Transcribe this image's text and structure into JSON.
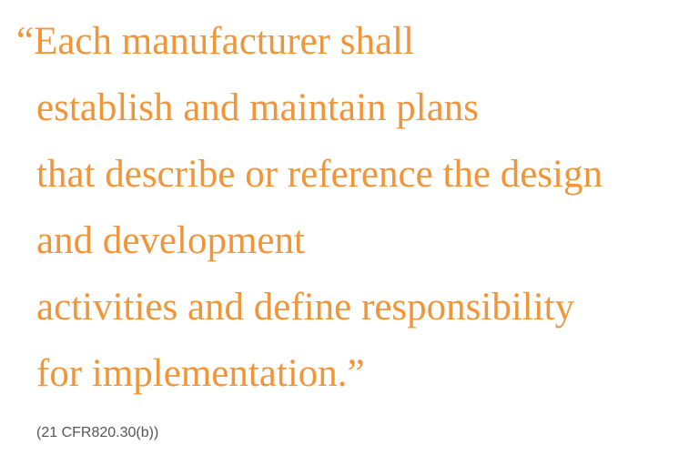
{
  "quote": {
    "lines": [
      "“Each manufacturer shall",
      "establish and maintain plans",
      "that describe or reference the design",
      "and development",
      "activities and define responsibility",
      "for implementation.”"
    ]
  },
  "citation": "(21 CFR820.30(b))",
  "colors": {
    "quote_text": "#f0963a",
    "citation_text": "#555555",
    "background": "#ffffff"
  }
}
